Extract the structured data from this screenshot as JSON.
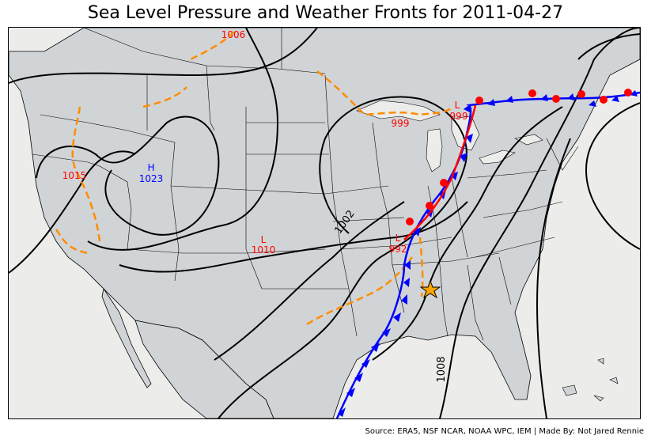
{
  "title": "Sea Level Pressure and Weather Fronts for 2011-04-27",
  "source": "Source: ERA5, NSF NCAR, NOAA WPC, IEM | Made By: Not Jared Rennie",
  "colors": {
    "ocean": "#ececea",
    "land": "#d1d4d6",
    "isobar": "#000000",
    "trough": "#ff8c00",
    "cold_front": "#0000ff",
    "warm_front": "#ff0000",
    "high": "#0000ff",
    "low": "#ff0000",
    "star": "#ffa500"
  },
  "isobar_labels": [
    "1002",
    "1008",
    "1006"
  ],
  "pressure_centers": [
    {
      "type": "H",
      "value": "1023"
    },
    {
      "type": "L",
      "value": "1010"
    },
    {
      "type": "L",
      "value": "992"
    },
    {
      "type": "L",
      "value": "999"
    },
    {
      "type": "L",
      "value": "999"
    }
  ],
  "other_labels": [
    "1015"
  ],
  "marker": {
    "icon": "star-icon"
  }
}
